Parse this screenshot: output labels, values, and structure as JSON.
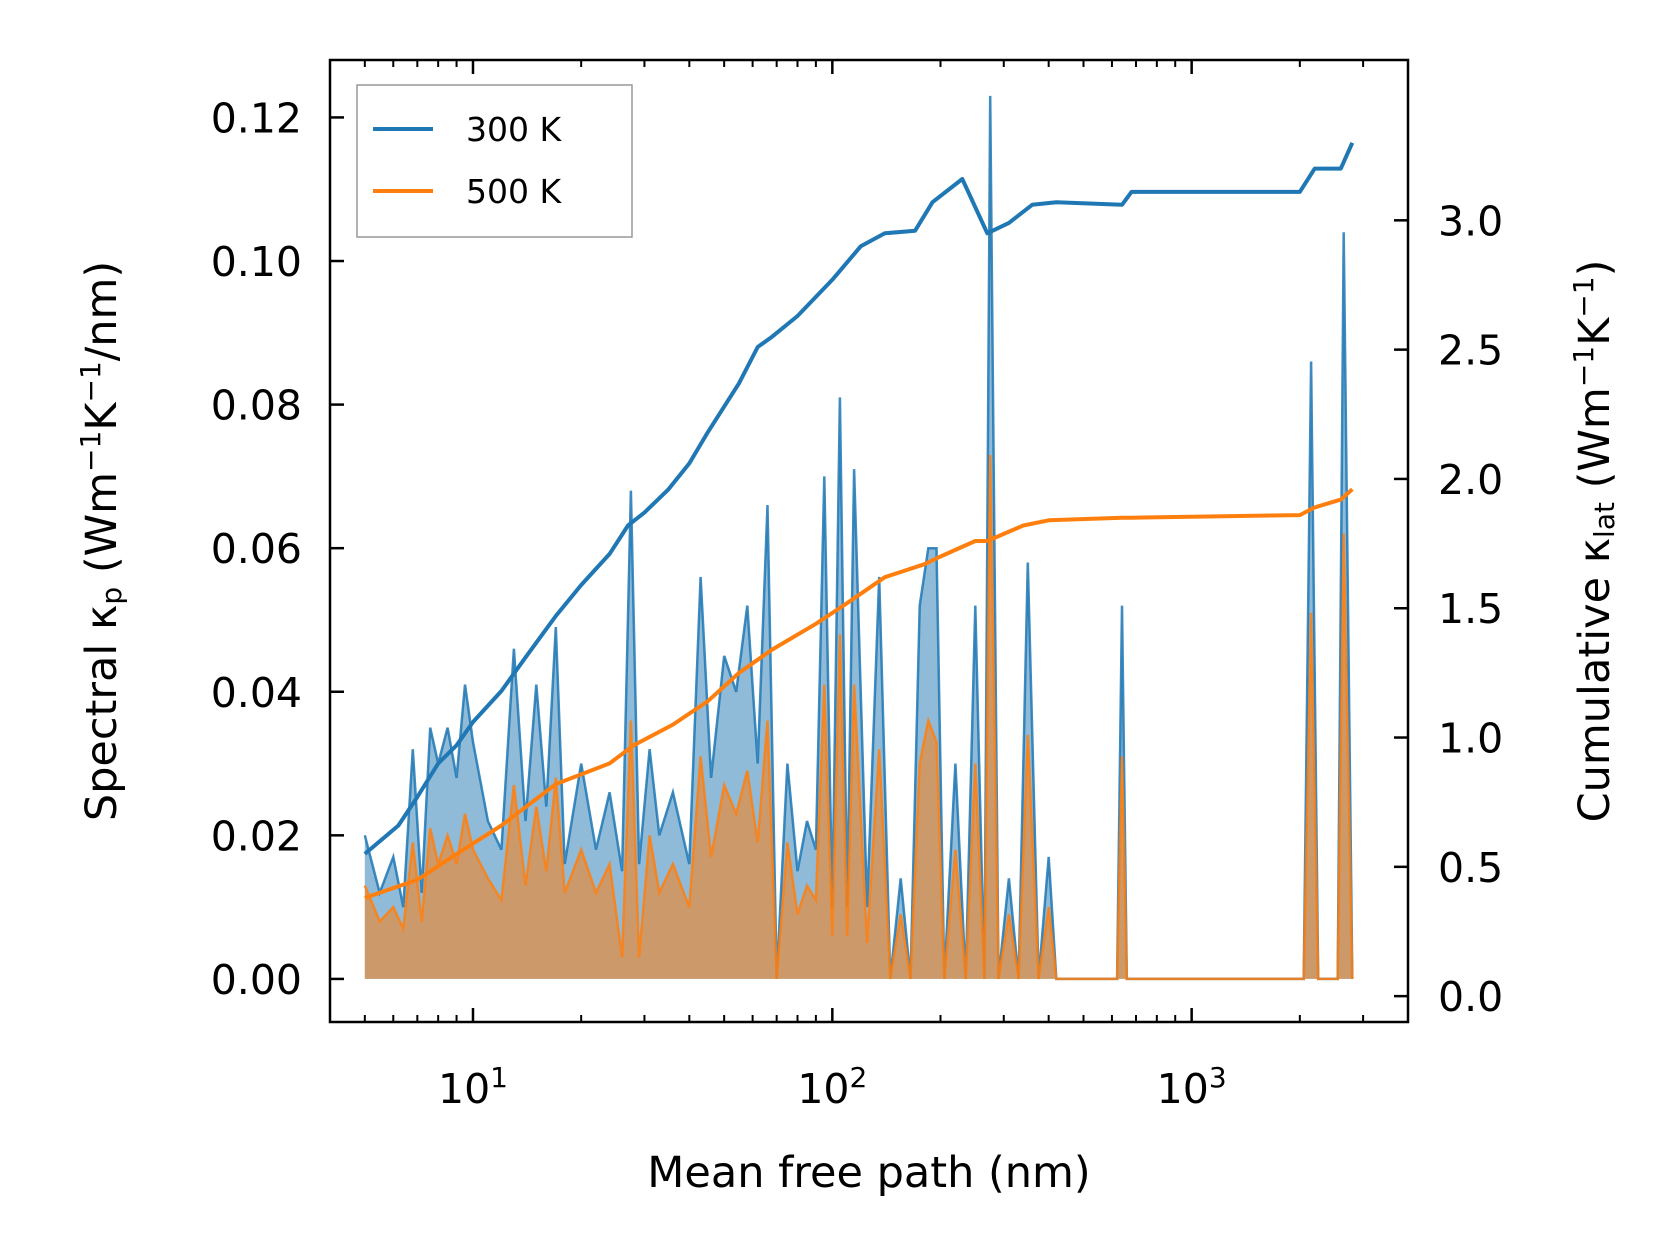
{
  "chart_data": {
    "type": "line",
    "xlabel": "Mean free path (nm)",
    "x_scale": "log",
    "xlim": [
      4.0,
      4000
    ],
    "x_ticks": [
      {
        "value": 10,
        "base": "10",
        "exp": "1"
      },
      {
        "value": 100,
        "base": "10",
        "exp": "2"
      },
      {
        "value": 1000,
        "base": "10",
        "exp": "3"
      }
    ],
    "ylabel_left": {
      "pre": "Spectral κ",
      "sub": "p",
      "mid": " (Wm",
      "sup1": "−1",
      "mid2": "K",
      "sup2": "−1",
      "post": "/nm)"
    },
    "ylim_left": [
      -0.006,
      0.128
    ],
    "y_ticks_left": [
      "0.00",
      "0.02",
      "0.04",
      "0.06",
      "0.08",
      "0.10",
      "0.12"
    ],
    "ylabel_right": {
      "pre": "Cumulative κ",
      "sub": "lat",
      "mid": " (Wm",
      "sup1": "−1",
      "mid2": "K",
      "sup2": "−1",
      "post": ")"
    },
    "ylim_right": [
      -0.1,
      3.62
    ],
    "y_ticks_right": [
      "0.0",
      "0.5",
      "1.0",
      "1.5",
      "2.0",
      "2.5",
      "3.0"
    ],
    "legend": {
      "position": "top-left",
      "entries": [
        {
          "label": "300 K",
          "color": "#1f77b4"
        },
        {
          "label": "500 K",
          "color": "#ff7f0e"
        }
      ]
    },
    "series": [
      {
        "name": "300 K",
        "color": "#1f77b4",
        "axis": "right",
        "style": "line",
        "x": [
          5.0,
          6.2,
          7.0,
          8.0,
          9.0,
          10.0,
          12.0,
          14.0,
          17.0,
          20.0,
          24.0,
          27.0,
          30.0,
          35.0,
          40.0,
          45.0,
          55.0,
          62.0,
          68.0,
          80.0,
          100.0,
          120.0,
          140.0,
          170.0,
          190.0,
          230.0,
          270.0,
          310.0,
          360.0,
          420.0,
          640.0,
          680.0,
          2000.0,
          2200.0,
          2600.0,
          2800.0
        ],
        "y": [
          0.55,
          0.66,
          0.77,
          0.9,
          0.97,
          1.06,
          1.18,
          1.31,
          1.47,
          1.59,
          1.71,
          1.82,
          1.87,
          1.96,
          2.06,
          2.18,
          2.37,
          2.51,
          2.55,
          2.63,
          2.77,
          2.9,
          2.95,
          2.96,
          3.07,
          3.16,
          2.95,
          2.99,
          3.06,
          3.07,
          3.06,
          3.11,
          3.11,
          3.2,
          3.2,
          3.3
        ]
      },
      {
        "name": "500 K",
        "color": "#ff7f0e",
        "axis": "right",
        "style": "line",
        "x": [
          5.0,
          7.0,
          9.0,
          12.0,
          17.0,
          24.0,
          28.0,
          36.0,
          45.0,
          55.0,
          68.0,
          90.0,
          110.0,
          140.0,
          180.0,
          200.0,
          250.0,
          270.0,
          340.0,
          400.0,
          640.0,
          680.0,
          2000.0,
          2200.0,
          2600.0,
          2800.0
        ],
        "y": [
          0.38,
          0.45,
          0.55,
          0.66,
          0.82,
          0.9,
          0.97,
          1.05,
          1.14,
          1.25,
          1.34,
          1.44,
          1.52,
          1.62,
          1.67,
          1.7,
          1.76,
          1.76,
          1.82,
          1.84,
          1.85,
          1.85,
          1.86,
          1.89,
          1.92,
          1.96
        ]
      },
      {
        "name": "300 K spectral",
        "color": "#1f77b4",
        "axis": "left",
        "style": "filled",
        "x": [
          5.0,
          5.5,
          6.0,
          6.4,
          6.8,
          7.2,
          7.6,
          8.0,
          8.5,
          9.0,
          9.5,
          10.0,
          11.0,
          12.0,
          13.0,
          14.0,
          15.0,
          16.0,
          17.0,
          18.0,
          20.0,
          22.0,
          24.0,
          26.0,
          27.5,
          29.0,
          31.0,
          33.0,
          36.0,
          40.0,
          43.0,
          46.0,
          50.0,
          54.0,
          58.0,
          62.0,
          66.0,
          70.0,
          75.0,
          80.0,
          85.0,
          90.0,
          95.0,
          100.0,
          105.0,
          110.0,
          115.0,
          125.0,
          135.0,
          145.0,
          155.0,
          165.0,
          175.0,
          185.0,
          195.0,
          205.0,
          220.0,
          235.0,
          250.0,
          265.0,
          275.0,
          290.0,
          310.0,
          330.0,
          350.0,
          375.0,
          400.0,
          420.0,
          440.0,
          600.0,
          620.0,
          640.0,
          660.0,
          680.0,
          2050.0,
          2150.0,
          2250.0,
          2550.0,
          2650.0,
          2800.0
        ],
        "y": [
          0.02,
          0.012,
          0.017,
          0.01,
          0.032,
          0.012,
          0.035,
          0.03,
          0.035,
          0.028,
          0.041,
          0.033,
          0.022,
          0.018,
          0.046,
          0.022,
          0.041,
          0.024,
          0.049,
          0.016,
          0.03,
          0.018,
          0.026,
          0.015,
          0.068,
          0.016,
          0.032,
          0.02,
          0.026,
          0.016,
          0.056,
          0.028,
          0.045,
          0.04,
          0.052,
          0.03,
          0.066,
          0.0,
          0.03,
          0.015,
          0.022,
          0.018,
          0.07,
          0.01,
          0.081,
          0.01,
          0.071,
          0.01,
          0.056,
          0.0,
          0.014,
          0.0,
          0.052,
          0.06,
          0.06,
          0.0,
          0.03,
          0.0,
          0.052,
          0.0,
          0.123,
          0.0,
          0.014,
          0.0,
          0.058,
          0.0,
          0.017,
          0.0,
          0.0,
          0.0,
          0.0,
          0.052,
          0.0,
          0.0,
          0.0,
          0.086,
          0.0,
          0.0,
          0.104,
          0.0
        ]
      },
      {
        "name": "500 K spectral",
        "color": "#ff7f0e",
        "axis": "left",
        "style": "filled",
        "x": [
          5.0,
          5.5,
          6.0,
          6.4,
          6.8,
          7.2,
          7.6,
          8.0,
          8.5,
          9.0,
          9.5,
          10.0,
          11.0,
          12.0,
          13.0,
          14.0,
          15.0,
          16.0,
          17.0,
          18.0,
          20.0,
          22.0,
          24.0,
          26.0,
          27.5,
          29.0,
          31.0,
          33.0,
          36.0,
          40.0,
          43.0,
          46.0,
          50.0,
          54.0,
          58.0,
          62.0,
          66.0,
          70.0,
          75.0,
          80.0,
          85.0,
          90.0,
          95.0,
          100.0,
          105.0,
          110.0,
          115.0,
          125.0,
          135.0,
          145.0,
          155.0,
          165.0,
          175.0,
          185.0,
          195.0,
          205.0,
          220.0,
          235.0,
          250.0,
          265.0,
          275.0,
          290.0,
          310.0,
          330.0,
          350.0,
          375.0,
          400.0,
          420.0,
          440.0,
          600.0,
          620.0,
          640.0,
          660.0,
          680.0,
          2050.0,
          2150.0,
          2250.0,
          2550.0,
          2650.0,
          2800.0
        ],
        "y": [
          0.013,
          0.008,
          0.01,
          0.007,
          0.019,
          0.008,
          0.021,
          0.016,
          0.02,
          0.016,
          0.023,
          0.018,
          0.014,
          0.011,
          0.027,
          0.013,
          0.024,
          0.015,
          0.028,
          0.012,
          0.018,
          0.012,
          0.016,
          0.003,
          0.036,
          0.003,
          0.02,
          0.012,
          0.016,
          0.01,
          0.031,
          0.017,
          0.027,
          0.023,
          0.029,
          0.019,
          0.036,
          0.0,
          0.019,
          0.009,
          0.013,
          0.011,
          0.041,
          0.006,
          0.048,
          0.006,
          0.041,
          0.005,
          0.032,
          0.0,
          0.009,
          0.0,
          0.03,
          0.036,
          0.033,
          0.0,
          0.018,
          0.0,
          0.03,
          0.0,
          0.073,
          0.0,
          0.009,
          0.0,
          0.034,
          0.0,
          0.01,
          0.0,
          0.0,
          0.0,
          0.0,
          0.031,
          0.0,
          0.0,
          0.0,
          0.051,
          0.0,
          0.0,
          0.062,
          0.0
        ]
      }
    ]
  }
}
